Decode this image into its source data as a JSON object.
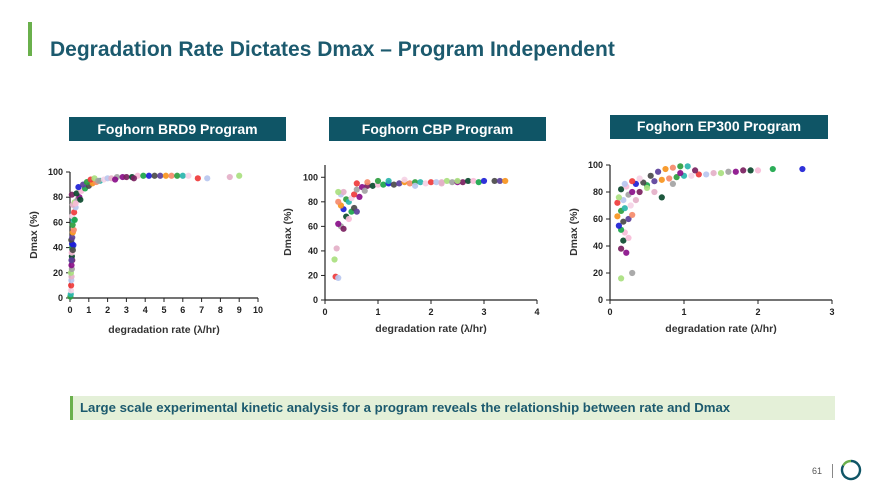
{
  "slide": {
    "title": "Degradation Rate Dictates Dmax – Program Independent",
    "takeaway": "Large scale experimental kinetic analysis for a program reveals the relationship between rate and Dmax",
    "page_number": "61",
    "accent_color": "#6ab04c",
    "title_color": "#1c5a6e",
    "label_bg_color": "#0f5566"
  },
  "palette": [
    "#2e9e3f",
    "#1d1fd6",
    "#8a0f8a",
    "#ef3b3b",
    "#f7941d",
    "#f9bcd8",
    "#a9e07f",
    "#2ab5ad",
    "#4a4a4a",
    "#7a1f5f",
    "#b8c7ef",
    "#f58a6a",
    "#1aa64a",
    "#a3a3a3",
    "#f5d2e6",
    "#5b3f9a",
    "#0b4a2e",
    "#e4b0c8"
  ],
  "chart_data": [
    {
      "type": "scatter",
      "title": "Foghorn BRD9 Program",
      "xlabel": "degradation rate (λ/hr)",
      "ylabel": "Dmax (%)",
      "xlim": [
        0,
        10
      ],
      "ylim": [
        0,
        100
      ],
      "xticks": [
        "0",
        "1",
        "2",
        "3",
        "4",
        "5",
        "6",
        "7",
        "8",
        "9",
        "10"
      ],
      "yticks": [
        "0",
        "20",
        "40",
        "60",
        "80",
        "100"
      ],
      "points": [
        [
          0.02,
          1
        ],
        [
          0.04,
          3
        ],
        [
          0.05,
          6
        ],
        [
          0.06,
          10
        ],
        [
          0.07,
          14
        ],
        [
          0.08,
          17
        ],
        [
          0.05,
          20
        ],
        [
          0.1,
          23
        ],
        [
          0.08,
          26
        ],
        [
          0.12,
          30
        ],
        [
          0.1,
          33
        ],
        [
          0.09,
          36
        ],
        [
          0.13,
          40
        ],
        [
          0.11,
          43
        ],
        [
          0.07,
          46
        ],
        [
          0.12,
          48
        ],
        [
          0.15,
          52
        ],
        [
          0.2,
          54
        ],
        [
          0.14,
          58
        ],
        [
          0.18,
          62
        ],
        [
          0.12,
          65
        ],
        [
          0.22,
          68
        ],
        [
          0.3,
          72
        ],
        [
          0.15,
          74
        ],
        [
          0.25,
          76
        ],
        [
          0.4,
          78
        ],
        [
          0.5,
          80
        ],
        [
          0.1,
          82
        ],
        [
          0.35,
          83
        ],
        [
          0.6,
          85
        ],
        [
          0.8,
          87
        ],
        [
          0.45,
          88
        ],
        [
          1.0,
          89
        ],
        [
          0.7,
          90
        ],
        [
          1.2,
          91
        ],
        [
          1.4,
          92
        ],
        [
          0.9,
          92
        ],
        [
          1.6,
          93
        ],
        [
          1.8,
          94
        ],
        [
          1.1,
          94
        ],
        [
          2.0,
          95
        ],
        [
          2.2,
          95
        ],
        [
          1.3,
          95
        ],
        [
          2.5,
          96
        ],
        [
          2.8,
          96
        ],
        [
          3.0,
          96
        ],
        [
          3.3,
          96
        ],
        [
          3.6,
          97
        ],
        [
          3.9,
          97
        ],
        [
          4.2,
          97
        ],
        [
          4.5,
          97
        ],
        [
          4.8,
          97
        ],
        [
          5.1,
          97
        ],
        [
          5.4,
          97
        ],
        [
          5.7,
          97
        ],
        [
          6.0,
          97
        ],
        [
          6.3,
          97
        ],
        [
          6.8,
          95
        ],
        [
          7.3,
          95
        ],
        [
          8.5,
          96
        ],
        [
          9.0,
          97
        ],
        [
          1.5,
          93
        ],
        [
          2.4,
          94
        ],
        [
          3.4,
          95
        ],
        [
          0.55,
          78
        ],
        [
          0.3,
          75
        ],
        [
          0.25,
          62
        ],
        [
          0.18,
          42
        ],
        [
          0.15,
          38
        ],
        [
          0.08,
          30
        ]
      ]
    },
    {
      "type": "scatter",
      "title": "Foghorn CBP Program",
      "xlabel": "degradation rate (λ/hr)",
      "ylabel": "Dmax (%)",
      "xlim": [
        0,
        4
      ],
      "ylim": [
        0,
        110
      ],
      "xticks": [
        "0",
        "1",
        "2",
        "3",
        "4"
      ],
      "yticks": [
        "0",
        "20",
        "40",
        "60",
        "80",
        "100"
      ],
      "points": [
        [
          0.2,
          19
        ],
        [
          0.25,
          18
        ],
        [
          0.22,
          42
        ],
        [
          0.18,
          33
        ],
        [
          0.3,
          60
        ],
        [
          0.25,
          62
        ],
        [
          0.35,
          58
        ],
        [
          0.4,
          68
        ],
        [
          0.45,
          66
        ],
        [
          0.5,
          72
        ],
        [
          0.35,
          74
        ],
        [
          0.55,
          75
        ],
        [
          0.6,
          72
        ],
        [
          0.3,
          77
        ],
        [
          0.25,
          80
        ],
        [
          0.4,
          82
        ],
        [
          0.45,
          80
        ],
        [
          0.5,
          83
        ],
        [
          0.55,
          86
        ],
        [
          0.3,
          86
        ],
        [
          0.35,
          88
        ],
        [
          0.25,
          88
        ],
        [
          0.6,
          90
        ],
        [
          0.7,
          92
        ],
        [
          0.8,
          93
        ],
        [
          0.9,
          93
        ],
        [
          1.0,
          94
        ],
        [
          1.1,
          94
        ],
        [
          1.2,
          95
        ],
        [
          1.3,
          94
        ],
        [
          1.4,
          95
        ],
        [
          1.5,
          96
        ],
        [
          1.6,
          95
        ],
        [
          1.7,
          96
        ],
        [
          1.8,
          96
        ],
        [
          1.9,
          95
        ],
        [
          2.0,
          96
        ],
        [
          2.1,
          96
        ],
        [
          2.2,
          96
        ],
        [
          2.3,
          97
        ],
        [
          2.4,
          96
        ],
        [
          2.5,
          96
        ],
        [
          2.6,
          96
        ],
        [
          2.7,
          97
        ],
        [
          2.8,
          97
        ],
        [
          2.9,
          96
        ],
        [
          3.0,
          97
        ],
        [
          3.2,
          97
        ],
        [
          3.3,
          97
        ],
        [
          3.4,
          97
        ],
        [
          0.8,
          96
        ],
        [
          1.0,
          97
        ],
        [
          1.2,
          97
        ],
        [
          1.5,
          98
        ],
        [
          0.6,
          95
        ],
        [
          1.7,
          93
        ],
        [
          2.2,
          95
        ],
        [
          2.5,
          97
        ],
        [
          0.75,
          89
        ],
        [
          0.65,
          84
        ]
      ]
    },
    {
      "type": "scatter",
      "title": "Foghorn EP300 Program",
      "xlabel": "degradation rate (λ/hr)",
      "ylabel": "Dmax (%)",
      "xlim": [
        0,
        3
      ],
      "ylim": [
        0,
        100
      ],
      "xticks": [
        "0",
        "1",
        "2",
        "3"
      ],
      "yticks": [
        "0",
        "20",
        "40",
        "60",
        "80",
        "100"
      ],
      "points": [
        [
          0.15,
          16
        ],
        [
          0.3,
          20
        ],
        [
          0.22,
          35
        ],
        [
          0.15,
          38
        ],
        [
          0.18,
          44
        ],
        [
          0.2,
          50
        ],
        [
          0.15,
          52
        ],
        [
          0.12,
          55
        ],
        [
          0.18,
          58
        ],
        [
          0.25,
          60
        ],
        [
          0.1,
          62
        ],
        [
          0.3,
          63
        ],
        [
          0.15,
          66
        ],
        [
          0.2,
          68
        ],
        [
          0.28,
          70
        ],
        [
          0.1,
          72
        ],
        [
          0.18,
          74
        ],
        [
          0.35,
          74
        ],
        [
          0.12,
          76
        ],
        [
          0.25,
          78
        ],
        [
          0.3,
          80
        ],
        [
          0.4,
          80
        ],
        [
          0.15,
          82
        ],
        [
          0.22,
          84
        ],
        [
          0.5,
          85
        ],
        [
          0.35,
          86
        ],
        [
          0.45,
          87
        ],
        [
          0.6,
          88
        ],
        [
          0.7,
          89
        ],
        [
          0.8,
          90
        ],
        [
          0.9,
          91
        ],
        [
          1.0,
          92
        ],
        [
          1.1,
          92
        ],
        [
          1.2,
          93
        ],
        [
          1.3,
          93
        ],
        [
          1.4,
          94
        ],
        [
          1.5,
          94
        ],
        [
          1.6,
          95
        ],
        [
          1.7,
          95
        ],
        [
          1.8,
          96
        ],
        [
          1.9,
          96
        ],
        [
          2.0,
          96
        ],
        [
          2.2,
          97
        ],
        [
          2.6,
          97
        ],
        [
          0.55,
          92
        ],
        [
          0.65,
          95
        ],
        [
          0.75,
          97
        ],
        [
          0.85,
          98
        ],
        [
          0.95,
          99
        ],
        [
          1.05,
          99
        ],
        [
          0.4,
          90
        ],
        [
          0.3,
          88
        ],
        [
          0.2,
          86
        ],
        [
          0.6,
          80
        ],
        [
          0.5,
          83
        ],
        [
          0.85,
          86
        ],
        [
          0.95,
          94
        ],
        [
          1.15,
          96
        ],
        [
          0.7,
          76
        ],
        [
          0.25,
          46
        ]
      ]
    }
  ]
}
